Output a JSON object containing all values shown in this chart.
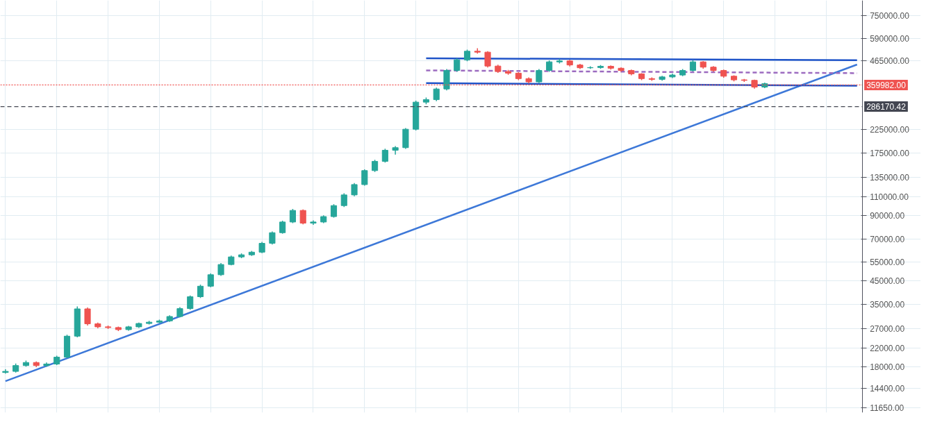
{
  "chart_data": {
    "type": "candlestick",
    "categories": [
      null,
      null,
      null,
      null,
      null,
      null,
      null,
      null,
      null,
      null,
      null,
      null,
      null,
      null,
      null,
      null,
      null,
      null,
      null,
      null,
      null,
      null,
      null,
      null,
      null,
      null,
      null,
      null,
      null,
      null,
      null,
      null,
      null,
      null,
      null,
      null,
      null,
      null,
      null,
      null,
      null,
      null,
      null,
      null,
      null,
      null,
      null,
      null,
      null,
      null,
      null,
      null,
      null,
      null,
      null,
      null,
      null,
      null,
      null,
      null,
      null,
      null,
      null,
      null,
      null,
      null,
      null,
      null,
      null,
      null,
      null,
      null,
      null,
      null,
      null,
      null,
      null,
      null,
      null,
      null,
      null,
      null,
      null,
      null
    ],
    "ohlc": [
      [
        17000,
        17600,
        16800,
        17200
      ],
      [
        17200,
        18700,
        17000,
        18300
      ],
      [
        18300,
        19300,
        18100,
        18900
      ],
      [
        18900,
        19100,
        18000,
        18300
      ],
      [
        18300,
        18900,
        18100,
        18600
      ],
      [
        18600,
        20300,
        18400,
        20000
      ],
      [
        20000,
        25400,
        19800,
        25000
      ],
      [
        25000,
        34300,
        24700,
        33400
      ],
      [
        33400,
        33900,
        28000,
        28500
      ],
      [
        28500,
        28900,
        27200,
        27600
      ],
      [
        27600,
        28000,
        27000,
        27400
      ],
      [
        27400,
        27700,
        26400,
        26800
      ],
      [
        26800,
        27900,
        26500,
        27600
      ],
      [
        27600,
        28900,
        27300,
        28600
      ],
      [
        28600,
        29400,
        28300,
        29000
      ],
      [
        29000,
        29800,
        28700,
        29400
      ],
      [
        29400,
        31200,
        29100,
        30800
      ],
      [
        30800,
        34000,
        30500,
        33500
      ],
      [
        33500,
        38500,
        33100,
        38000
      ],
      [
        38000,
        43200,
        37500,
        42500
      ],
      [
        42500,
        48700,
        42000,
        48000
      ],
      [
        48000,
        54300,
        47400,
        53500
      ],
      [
        53500,
        58800,
        53000,
        58000
      ],
      [
        58000,
        60200,
        57200,
        59300
      ],
      [
        59300,
        61800,
        58600,
        61000
      ],
      [
        61000,
        68000,
        60400,
        67000
      ],
      [
        67000,
        76000,
        66200,
        75000
      ],
      [
        75000,
        85200,
        74200,
        84000
      ],
      [
        84000,
        96500,
        83000,
        95000
      ],
      [
        95000,
        96000,
        82000,
        83000
      ],
      [
        83000,
        85500,
        81500,
        84000
      ],
      [
        84000,
        90200,
        83000,
        89000
      ],
      [
        89000,
        101500,
        88000,
        100000
      ],
      [
        100000,
        114000,
        98500,
        112000
      ],
      [
        112000,
        127000,
        110500,
        125000
      ],
      [
        125000,
        147000,
        123500,
        145000
      ],
      [
        145000,
        162500,
        143000,
        160000
      ],
      [
        160000,
        183000,
        158000,
        180000
      ],
      [
        180000,
        188000,
        172000,
        185000
      ],
      [
        185000,
        228000,
        182500,
        225000
      ],
      [
        225000,
        305000,
        222000,
        300000
      ],
      [
        300000,
        315000,
        293000,
        308000
      ],
      [
        308000,
        350000,
        303000,
        345000
      ],
      [
        345000,
        426000,
        340000,
        420000
      ],
      [
        420000,
        478000,
        414000,
        470000
      ],
      [
        470000,
        524000,
        463000,
        515000
      ],
      [
        515000,
        532000,
        502000,
        510000
      ],
      [
        510000,
        515000,
        433000,
        440000
      ],
      [
        440000,
        446000,
        409000,
        415000
      ],
      [
        415000,
        422000,
        401000,
        408000
      ],
      [
        408000,
        412000,
        379000,
        385000
      ],
      [
        385000,
        390000,
        366000,
        372000
      ],
      [
        372000,
        426000,
        367000,
        420000
      ],
      [
        420000,
        467000,
        414000,
        460000
      ],
      [
        460000,
        474000,
        452000,
        465000
      ],
      [
        465000,
        470000,
        438000,
        445000
      ],
      [
        445000,
        450000,
        426000,
        432000
      ],
      [
        432000,
        439000,
        427000,
        433000
      ],
      [
        433000,
        445000,
        428000,
        439000
      ],
      [
        439000,
        443000,
        424000,
        430000
      ],
      [
        430000,
        434000,
        414000,
        420000
      ],
      [
        420000,
        424000,
        399000,
        405000
      ],
      [
        405000,
        408000,
        379000,
        385000
      ],
      [
        385000,
        390000,
        376000,
        382000
      ],
      [
        382000,
        397000,
        377000,
        392000
      ],
      [
        392000,
        406000,
        387000,
        400000
      ],
      [
        400000,
        426000,
        395000,
        420000
      ],
      [
        420000,
        468000,
        415000,
        460000
      ],
      [
        460000,
        464000,
        428000,
        435000
      ],
      [
        435000,
        440000,
        414000,
        420000
      ],
      [
        420000,
        424000,
        389000,
        395000
      ],
      [
        395000,
        399000,
        374000,
        380000
      ],
      [
        380000,
        384000,
        372000,
        378000
      ],
      [
        378000,
        381000,
        346000,
        352000
      ],
      [
        352000,
        369000,
        348000,
        365000
      ],
      null,
      null,
      null,
      null,
      null,
      null,
      null,
      null,
      null
    ],
    "colors": [
      "#26a69a",
      "#26a69a",
      "#26a69a",
      "#ef5350",
      "#26a69a",
      "#26a69a",
      "#26a69a",
      "#26a69a",
      "#ef5350",
      "#ef5350",
      "#ef5350",
      "#ef5350",
      "#26a69a",
      "#26a69a",
      "#26a69a",
      "#26a69a",
      "#26a69a",
      "#26a69a",
      "#26a69a",
      "#26a69a",
      "#26a69a",
      "#26a69a",
      "#26a69a",
      "#26a69a",
      "#26a69a",
      "#26a69a",
      "#26a69a",
      "#26a69a",
      "#26a69a",
      "#ef5350",
      "#26a69a",
      "#26a69a",
      "#26a69a",
      "#26a69a",
      "#26a69a",
      "#26a69a",
      "#26a69a",
      "#26a69a",
      "#26a69a",
      "#26a69a",
      "#26a69a",
      "#26a69a",
      "#26a69a",
      "#26a69a",
      "#26a69a",
      "#26a69a",
      "#ef5350",
      "#ef5350",
      "#ef5350",
      "#ef5350",
      "#ef5350",
      "#ef5350",
      "#26a69a",
      "#26a69a",
      "#26a69a",
      "#ef5350",
      "#ef5350",
      "#26a69a",
      "#26a69a",
      "#ef5350",
      "#ef5350",
      "#ef5350",
      "#ef5350",
      "#ef5350",
      "#26a69a",
      "#26a69a",
      "#26a69a",
      "#26a69a",
      "#ef5350",
      "#ef5350",
      "#ef5350",
      "#ef5350",
      "#ef5350",
      "#ef5350",
      "#26a69a",
      null,
      null,
      null,
      null,
      null,
      null,
      null,
      null,
      null
    ],
    "series": [
      {
        "type": "line",
        "values": [
          15500,
          null,
          null,
          null,
          null,
          null,
          null,
          null,
          null,
          null,
          null,
          null,
          null,
          null,
          null,
          null,
          null,
          null,
          null,
          null,
          null,
          null,
          null,
          null,
          null,
          null,
          null,
          null,
          null,
          null,
          null,
          null,
          null,
          null,
          null,
          null,
          null,
          null,
          null,
          null,
          null,
          null,
          null,
          null,
          null,
          null,
          null,
          null,
          null,
          null,
          null,
          null,
          null,
          null,
          null,
          null,
          null,
          null,
          null,
          null,
          null,
          null,
          null,
          null,
          null,
          null,
          null,
          null,
          null,
          null,
          null,
          null,
          null,
          null,
          null,
          null,
          null,
          null,
          null,
          null,
          null,
          null,
          null,
          447000
        ],
        "color": "#3d78d8",
        "line_style": "solid"
      },
      {
        "type": "line",
        "values": [
          null,
          null,
          null,
          null,
          null,
          null,
          null,
          null,
          null,
          null,
          null,
          null,
          null,
          null,
          null,
          null,
          null,
          null,
          null,
          null,
          null,
          null,
          null,
          null,
          null,
          null,
          null,
          null,
          null,
          null,
          null,
          null,
          null,
          null,
          null,
          null,
          null,
          null,
          null,
          null,
          null,
          478000,
          null,
          null,
          null,
          null,
          null,
          null,
          null,
          null,
          null,
          null,
          null,
          null,
          null,
          null,
          null,
          null,
          null,
          null,
          null,
          null,
          null,
          null,
          null,
          null,
          null,
          null,
          null,
          null,
          null,
          null,
          null,
          null,
          null,
          null,
          null,
          null,
          null,
          null,
          null,
          null,
          null,
          468000
        ],
        "color": "#1e53c8",
        "line_style": "solid"
      },
      {
        "type": "line",
        "values": [
          null,
          null,
          null,
          null,
          null,
          null,
          null,
          null,
          null,
          null,
          null,
          null,
          null,
          null,
          null,
          null,
          null,
          null,
          null,
          null,
          null,
          null,
          null,
          null,
          null,
          null,
          null,
          null,
          null,
          null,
          null,
          null,
          null,
          null,
          null,
          null,
          null,
          null,
          null,
          null,
          null,
          367000,
          null,
          null,
          null,
          null,
          null,
          null,
          null,
          null,
          null,
          null,
          null,
          null,
          null,
          null,
          null,
          null,
          null,
          null,
          null,
          null,
          null,
          null,
          null,
          null,
          null,
          null,
          null,
          null,
          null,
          null,
          null,
          null,
          null,
          null,
          null,
          null,
          null,
          null,
          null,
          null,
          null,
          357000
        ],
        "color": "#1e53c8",
        "line_style": "solid"
      },
      {
        "type": "line",
        "values": [
          null,
          null,
          null,
          null,
          null,
          null,
          null,
          null,
          null,
          null,
          null,
          null,
          null,
          null,
          null,
          null,
          null,
          null,
          null,
          null,
          null,
          null,
          null,
          null,
          null,
          null,
          null,
          null,
          null,
          null,
          null,
          null,
          null,
          null,
          null,
          null,
          null,
          null,
          null,
          null,
          null,
          420000,
          null,
          null,
          null,
          null,
          null,
          null,
          null,
          null,
          null,
          null,
          null,
          null,
          null,
          null,
          null,
          null,
          null,
          null,
          null,
          null,
          null,
          null,
          null,
          null,
          null,
          null,
          null,
          null,
          null,
          null,
          null,
          null,
          null,
          null,
          null,
          null,
          null,
          null,
          null,
          null,
          null,
          408000
        ],
        "color": "#9c6bc0",
        "line_style": "dashed"
      }
    ],
    "ref_lines": [
      {
        "axis": "y",
        "value": 359982,
        "label": "359982.00",
        "color": "#ef5350",
        "line_style": "dotted"
      },
      {
        "axis": "y",
        "value": 286170.42,
        "label": "286170.42",
        "color": "#434651",
        "line_style": "dashed"
      }
    ],
    "log": "y",
    "ylim": [
      11100,
      884000
    ],
    "yticks": [
      {
        "value": 11650,
        "label": "11650.00"
      },
      {
        "value": 14400,
        "label": "14400.00"
      },
      {
        "value": 18000,
        "label": "18000.00"
      },
      {
        "value": 22000,
        "label": "22000.00"
      },
      {
        "value": 27000,
        "label": "27000.00"
      },
      {
        "value": 35000,
        "label": "35000.00"
      },
      {
        "value": 45000,
        "label": "45000.00"
      },
      {
        "value": 55000,
        "label": "55000.00"
      },
      {
        "value": 70000,
        "label": "70000.00"
      },
      {
        "value": 90000,
        "label": "90000.00"
      },
      {
        "value": 110000,
        "label": "110000.00"
      },
      {
        "value": 135000,
        "label": "135000.00"
      },
      {
        "value": 175000,
        "label": "175000.00"
      },
      {
        "value": 225000,
        "label": "225000.00"
      },
      {
        "value": 465000,
        "label": "465000.00"
      },
      {
        "value": 590000,
        "label": "590000.00"
      },
      {
        "value": 750000,
        "label": "750000.00"
      }
    ],
    "grid": true,
    "tick_labels": "y"
  }
}
